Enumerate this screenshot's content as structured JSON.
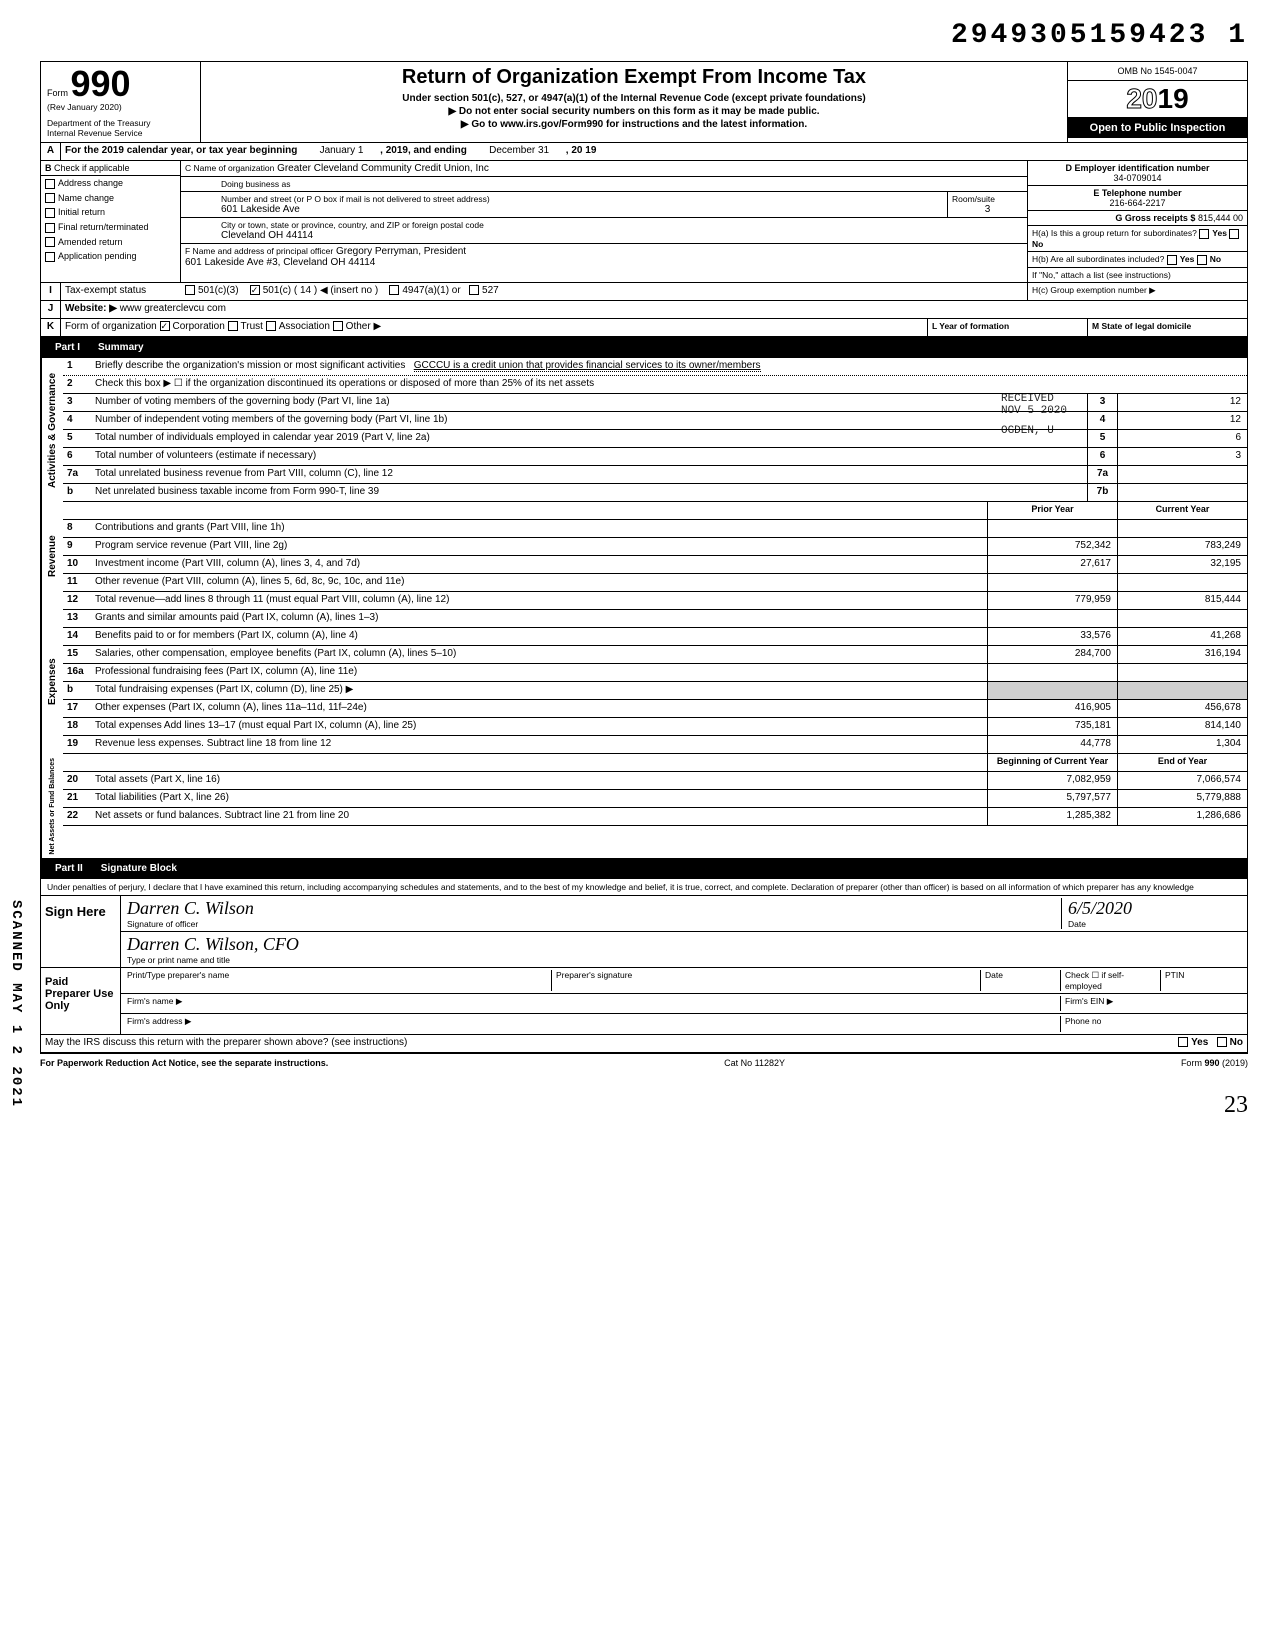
{
  "top_code": "2949305159423 1",
  "form": {
    "label": "Form",
    "number": "990",
    "rev": "(Rev January 2020)",
    "dept": "Department of the Treasury",
    "irs": "Internal Revenue Service"
  },
  "header": {
    "title": "Return of Organization Exempt From Income Tax",
    "sub1": "Under section 501(c), 527, or 4947(a)(1) of the Internal Revenue Code (except private foundations)",
    "sub2": "▶ Do not enter social security numbers on this form as it may be made public.",
    "sub3": "▶ Go to www.irs.gov/Form990 for instructions and the latest information.",
    "omb": "OMB No 1545-0047",
    "year": "2019",
    "open": "Open to Public Inspection"
  },
  "line_a": {
    "letter": "A",
    "text": "For the 2019 calendar year, or tax year beginning",
    "begin": "January 1",
    "mid": ", 2019, and ending",
    "end": "December 31",
    "suffix": ", 20  19"
  },
  "section_b": {
    "letter": "B",
    "check_label": "Check if applicable",
    "checks": [
      "Address change",
      "Name change",
      "Initial return",
      "Final return/terminated",
      "Amended return",
      "Application pending"
    ],
    "c_label": "C Name of organization",
    "c_value": "Greater Cleveland Community Credit Union, Inc",
    "dba": "Doing business as",
    "addr_label": "Number and street (or P O  box if mail is not delivered to street address)",
    "addr_value": "601 Lakeside Ave",
    "room_label": "Room/suite",
    "room_value": "3",
    "city_label": "City or town, state or province, country, and ZIP or foreign postal code",
    "city_value": "Cleveland OH 44114",
    "f_label": "F Name and address of principal officer",
    "f_value": "Gregory Perryman, President",
    "f_addr": "601 Lakeside Ave #3, Cleveland OH 44114",
    "d_label": "D Employer identification number",
    "d_value": "34-0709014",
    "e_label": "E Telephone number",
    "e_value": "216-664-2217",
    "g_label": "G Gross receipts $",
    "g_value": "815,444 00",
    "ha_label": "H(a) Is this a group return for subordinates?",
    "hb_label": "H(b) Are all subordinates included?",
    "h_yes": "Yes",
    "h_no": "No",
    "h_note": "If \"No,\" attach a list (see instructions)",
    "hc_label": "H(c) Group exemption number ▶"
  },
  "line_i": {
    "letter": "I",
    "label": "Tax-exempt status",
    "opt1": "501(c)(3)",
    "opt2": "501(c) (",
    "opt2_val": "14",
    "opt2_suffix": ") ◀ (insert no )",
    "opt3": "4947(a)(1) or",
    "opt4": "527"
  },
  "line_j": {
    "letter": "J",
    "label": "Website: ▶",
    "value": "www greaterclevcu com"
  },
  "line_k": {
    "letter": "K",
    "label": "Form of organization",
    "opts": [
      "Corporation",
      "Trust",
      "Association",
      "Other ▶"
    ],
    "l_label": "L Year of formation",
    "m_label": "M State of legal domicile"
  },
  "part1": {
    "label": "Part I",
    "title": "Summary"
  },
  "activities": {
    "label": "Activities & Governance",
    "lines": [
      {
        "n": "1",
        "text": "Briefly describe the organization's mission or most significant activities",
        "val": "GCCCU is a credit union that provides financial services to its owner/members"
      },
      {
        "n": "2",
        "text": "Check this box ▶ ☐ if the organization discontinued its operations or disposed of more than 25% of its net assets"
      },
      {
        "n": "3",
        "text": "Number of voting members of the governing body (Part VI, line 1a)",
        "box": "3",
        "v": "12"
      },
      {
        "n": "4",
        "text": "Number of independent voting members of the governing body (Part VI, line 1b)",
        "box": "4",
        "v": "12"
      },
      {
        "n": "5",
        "text": "Total number of individuals employed in calendar year 2019 (Part V, line 2a)",
        "box": "5",
        "v": "6"
      },
      {
        "n": "6",
        "text": "Total number of volunteers (estimate if necessary)",
        "box": "6",
        "v": "3"
      },
      {
        "n": "7a",
        "text": "Total unrelated business revenue from Part VIII, column (C), line 12",
        "box": "7a",
        "v": ""
      },
      {
        "n": "b",
        "text": "Net unrelated business taxable income from Form 990-T, line 39",
        "box": "7b",
        "v": ""
      }
    ]
  },
  "stamp": {
    "received": "RECEIVED",
    "date": "NOV 5 2020",
    "office": "OGDEN, U"
  },
  "cols": {
    "prior": "Prior Year",
    "current": "Current Year",
    "begin": "Beginning of Current Year",
    "end": "End of Year"
  },
  "revenue": {
    "label": "Revenue",
    "lines": [
      {
        "n": "8",
        "text": "Contributions and grants (Part VIII, line 1h)",
        "p": "",
        "c": ""
      },
      {
        "n": "9",
        "text": "Program service revenue (Part VIII, line 2g)",
        "p": "752,342",
        "c": "783,249"
      },
      {
        "n": "10",
        "text": "Investment income (Part VIII, column (A), lines 3, 4, and 7d)",
        "p": "27,617",
        "c": "32,195"
      },
      {
        "n": "11",
        "text": "Other revenue (Part VIII, column (A), lines 5, 6d, 8c, 9c, 10c, and 11e)",
        "p": "",
        "c": ""
      },
      {
        "n": "12",
        "text": "Total revenue—add lines 8 through 11 (must equal Part VIII, column (A), line 12)",
        "p": "779,959",
        "c": "815,444"
      }
    ]
  },
  "expenses": {
    "label": "Expenses",
    "lines": [
      {
        "n": "13",
        "text": "Grants and similar amounts paid (Part IX, column (A), lines 1–3)",
        "p": "",
        "c": ""
      },
      {
        "n": "14",
        "text": "Benefits paid to or for members (Part IX, column (A), line 4)",
        "p": "33,576",
        "c": "41,268"
      },
      {
        "n": "15",
        "text": "Salaries, other compensation, employee benefits (Part IX, column (A), lines 5–10)",
        "p": "284,700",
        "c": "316,194"
      },
      {
        "n": "16a",
        "text": "Professional fundraising fees (Part IX, column (A), line 11e)",
        "p": "",
        "c": ""
      },
      {
        "n": "b",
        "text": "Total fundraising expenses (Part IX, column (D), line 25) ▶",
        "p": "",
        "c": "",
        "shaded": true
      },
      {
        "n": "17",
        "text": "Other expenses (Part IX, column (A), lines 11a–11d, 11f–24e)",
        "p": "416,905",
        "c": "456,678"
      },
      {
        "n": "18",
        "text": "Total expenses  Add lines 13–17 (must equal Part IX, column (A), line 25)",
        "p": "735,181",
        "c": "814,140"
      },
      {
        "n": "19",
        "text": "Revenue less expenses. Subtract line 18 from line 12",
        "p": "44,778",
        "c": "1,304"
      }
    ]
  },
  "netassets": {
    "label": "Net Assets or Fund Balances",
    "lines": [
      {
        "n": "20",
        "text": "Total assets (Part X, line 16)",
        "p": "7,082,959",
        "c": "7,066,574"
      },
      {
        "n": "21",
        "text": "Total liabilities (Part X, line 26)",
        "p": "5,797,577",
        "c": "5,779,888"
      },
      {
        "n": "22",
        "text": "Net assets or fund balances. Subtract line 21 from line 20",
        "p": "1,285,382",
        "c": "1,286,686"
      }
    ]
  },
  "part2": {
    "label": "Part II",
    "title": "Signature Block",
    "declaration": "Under penalties of perjury, I declare that I have examined this return, including accompanying schedules and statements, and to the best of my knowledge and belief, it is true, correct, and complete. Declaration of preparer (other than officer) is based on all information of which preparer has any knowledge"
  },
  "sign": {
    "here_label": "Sign Here",
    "sig_value": "Darren C. Wilson",
    "sig_label": "Signature of officer",
    "date_label": "Date",
    "date_value": "6/5/2020",
    "name_value": "Darren C. Wilson, CFO",
    "name_label": "Type or print name and title"
  },
  "paid": {
    "label": "Paid Preparer Use Only",
    "c1": "Print/Type preparer's name",
    "c2": "Preparer's signature",
    "c3": "Date",
    "c4": "Check ☐ if self-employed",
    "c5": "PTIN",
    "firm_name": "Firm's name  ▶",
    "firm_ein": "Firm's EIN ▶",
    "firm_addr": "Firm's address ▶",
    "phone": "Phone no"
  },
  "bottom": {
    "discuss": "May the IRS discuss this return with the preparer shown above? (see instructions)",
    "yes": "Yes",
    "no": "No",
    "paperwork": "For Paperwork Reduction Act Notice, see the separate instructions.",
    "cat": "Cat No 11282Y",
    "form": "Form 990 (2019)"
  },
  "scanned": "SCANNED MAY 1 2 2021",
  "page_num": "23"
}
